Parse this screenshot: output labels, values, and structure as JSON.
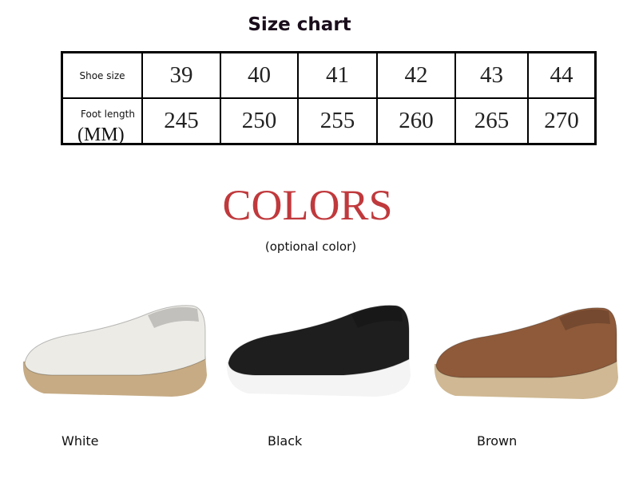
{
  "size_chart": {
    "title": "Size chart",
    "row_headers": {
      "shoe_size": "Shoe size",
      "foot_length": "Foot length",
      "unit": "(MM)"
    },
    "sizes": [
      "39",
      "40",
      "41",
      "42",
      "43",
      "44"
    ],
    "foot_lengths": [
      "245",
      "250",
      "255",
      "260",
      "265",
      "270"
    ]
  },
  "colors_section": {
    "title": "COLORS",
    "subtitle": "(optional color)",
    "items": [
      {
        "label": "White",
        "upper": "#ecebe6",
        "sole": "#c6ab84"
      },
      {
        "label": "Black",
        "upper": "#1e1e1e",
        "sole": "#f4f4f4"
      },
      {
        "label": "Brown",
        "upper": "#8e5a3a",
        "sole": "#cfb893"
      }
    ]
  }
}
